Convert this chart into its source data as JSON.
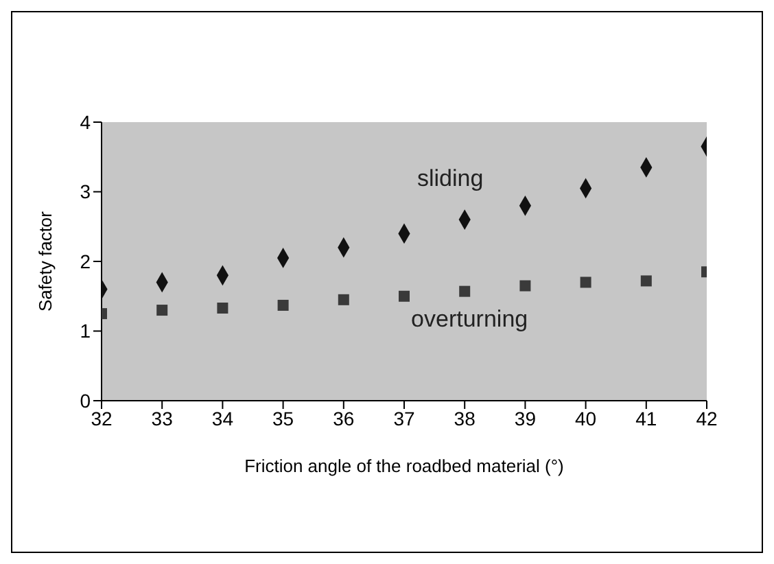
{
  "chart_data": {
    "type": "scatter",
    "xlabel": "Friction angle of the roadbed material (°)",
    "ylabel": "Safety factor",
    "x": [
      32,
      33,
      34,
      35,
      36,
      37,
      38,
      39,
      40,
      41,
      42
    ],
    "series": [
      {
        "name": "sliding",
        "color": "#111111",
        "marker": "diamond",
        "values": [
          1.6,
          1.7,
          1.8,
          2.05,
          2.2,
          2.4,
          2.6,
          2.8,
          3.05,
          3.35,
          3.65
        ]
      },
      {
        "name": "overturning",
        "color": "#3a3a3a",
        "marker": "square",
        "values": [
          1.25,
          1.3,
          1.33,
          1.37,
          1.45,
          1.5,
          1.57,
          1.65,
          1.7,
          1.72,
          1.85
        ]
      }
    ],
    "xlim": [
      32,
      42
    ],
    "xticks": [
      32,
      33,
      34,
      35,
      36,
      37,
      38,
      39,
      40,
      41,
      42
    ],
    "ylim": [
      0,
      4
    ],
    "yticks": [
      0,
      1,
      2,
      3,
      4
    ],
    "grid": false,
    "legend": false
  }
}
